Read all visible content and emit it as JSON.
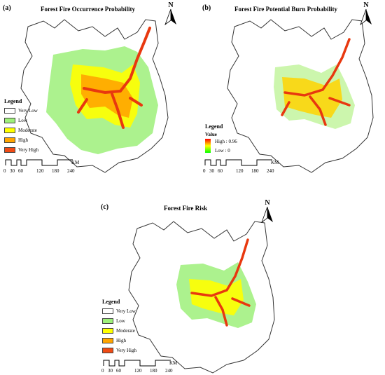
{
  "panels": [
    {
      "tag": "(a)",
      "title": "Forest Fire Occurrence Probability",
      "legend_title": "Legend",
      "legend_items": [
        {
          "label": "Very Low",
          "color": "#ffffff"
        },
        {
          "label": "Low",
          "color": "#9ef07a"
        },
        {
          "label": "Moderate",
          "color": "#ffff00"
        },
        {
          "label": "High",
          "color": "#ffa500"
        },
        {
          "label": "Very High",
          "color": "#f04b14"
        }
      ],
      "scale_ticks": [
        "0",
        "30",
        "60",
        "120",
        "180",
        "240"
      ],
      "scale_unit": "KM",
      "north": "N"
    },
    {
      "tag": "(b)",
      "title": "Forest Fire Potential Burn Probability",
      "legend_title": "Legend",
      "legend_subtitle": "Value",
      "ramp_high": "High : 0.96",
      "ramp_low": "Low : 0",
      "scale_ticks": [
        "0",
        "30",
        "60",
        "120",
        "180",
        "240"
      ],
      "scale_unit": "KM",
      "north": "N"
    },
    {
      "tag": "(c)",
      "title": "Forest Fire Risk",
      "legend_title": "Legend",
      "legend_items": [
        {
          "label": "Very Low",
          "color": "#ffffff"
        },
        {
          "label": "Low",
          "color": "#9ef07a"
        },
        {
          "label": "Moderate",
          "color": "#ffff00"
        },
        {
          "label": "High",
          "color": "#ffa500"
        },
        {
          "label": "Very High",
          "color": "#f04b14"
        }
      ],
      "scale_ticks": [
        "0",
        "30",
        "60",
        "120",
        "180",
        "240"
      ],
      "scale_unit": "KM",
      "north": "N"
    }
  ]
}
